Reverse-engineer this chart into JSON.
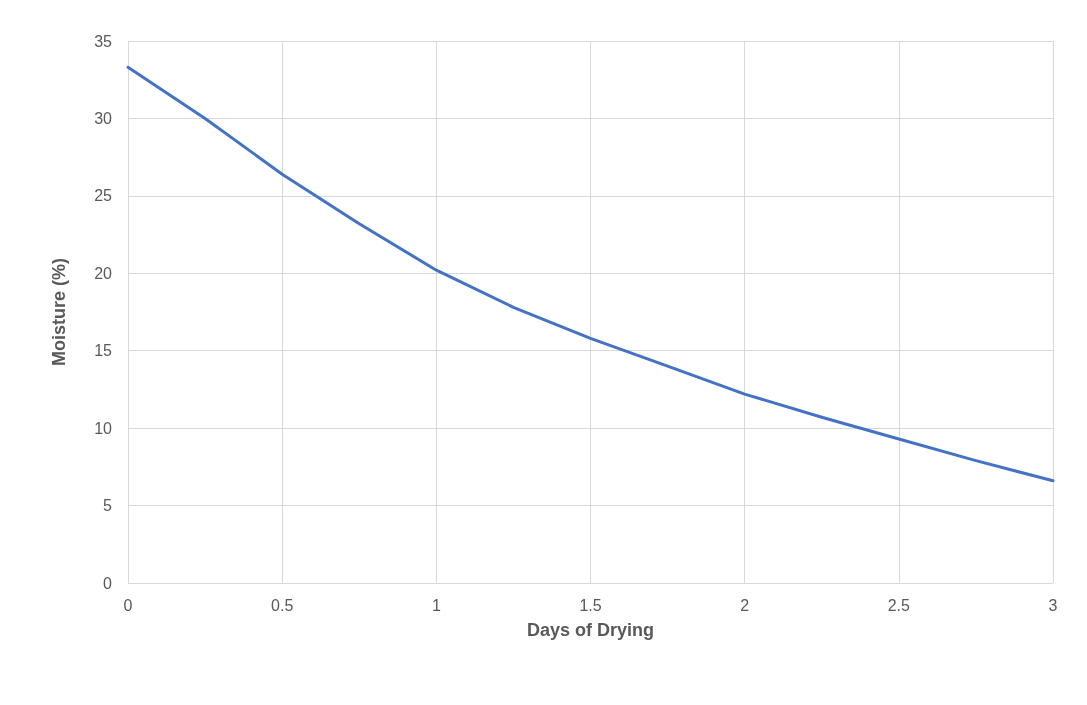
{
  "chart_data": {
    "type": "line",
    "xlabel": "Days of Drying",
    "ylabel": "Moisture (%)",
    "x": [
      0,
      0.25,
      0.5,
      0.75,
      1,
      1.25,
      1.5,
      1.75,
      2,
      2.25,
      2.5,
      2.75,
      3
    ],
    "series": [
      {
        "color": "#4472c4",
        "values": [
          33.3,
          30.0,
          26.4,
          23.2,
          20.2,
          17.8,
          15.8,
          14.0,
          12.2,
          10.7,
          9.3,
          7.9,
          6.6
        ]
      }
    ],
    "xlim": [
      0,
      3
    ],
    "xticks": [
      0,
      0.5,
      1,
      1.5,
      2,
      2.5,
      3
    ],
    "ylim": [
      0,
      35
    ],
    "yticks": [
      0,
      5,
      10,
      15,
      20,
      25,
      30,
      35
    ],
    "grid": true,
    "marker": "none",
    "line_style": "solid"
  }
}
